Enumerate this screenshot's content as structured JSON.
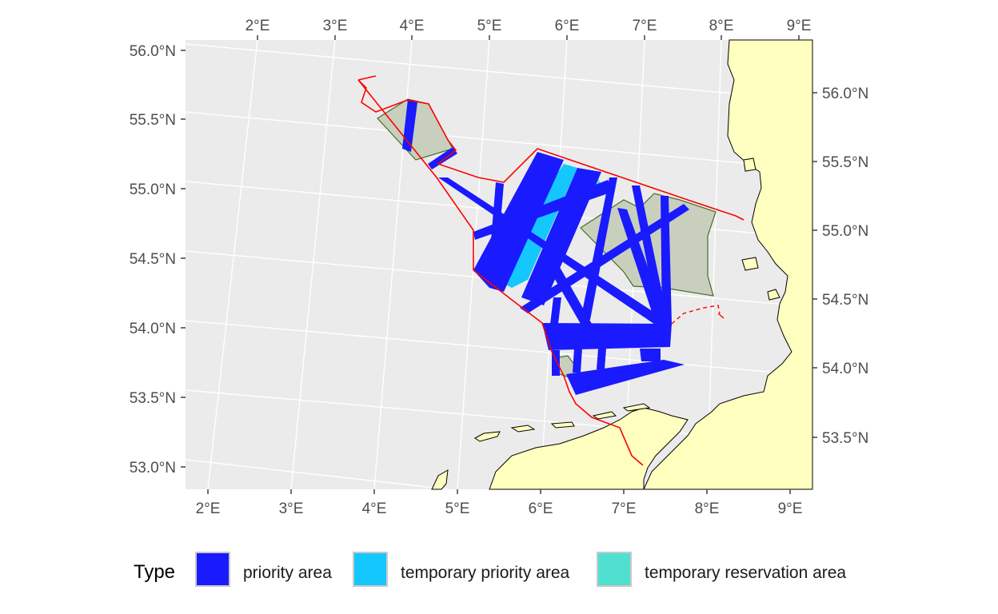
{
  "map": {
    "lon_ticks_bottom": [
      "2°E",
      "3°E",
      "4°E",
      "5°E",
      "6°E",
      "7°E",
      "8°E",
      "9°E"
    ],
    "lon_ticks_top": [
      "2°E",
      "3°E",
      "4°E",
      "5°E",
      "6°E",
      "7°E",
      "8°E",
      "9°E"
    ],
    "lat_ticks_left": [
      "56.0°N",
      "55.5°N",
      "55.0°N",
      "54.5°N",
      "54.0°N",
      "53.5°N",
      "53.0°N"
    ],
    "lat_ticks_right": [
      "56.0°N",
      "55.5°N",
      "55.0°N",
      "54.5°N",
      "54.0°N",
      "53.5°N"
    ],
    "colors": {
      "panel_background": "#ebebeb",
      "land": "#ffffc0",
      "eez_boundary": "#ff0000",
      "reserved_polygon_fill": "#c8d0bd",
      "reserved_polygon_border": "#4a6a2a"
    }
  },
  "legend": {
    "title": "Type",
    "items": [
      {
        "label": "priority area",
        "color": "#1a1aff"
      },
      {
        "label": "temporary priority area",
        "color": "#14c8ff"
      },
      {
        "label": "temporary reservation area",
        "color": "#50e0d0"
      }
    ]
  }
}
